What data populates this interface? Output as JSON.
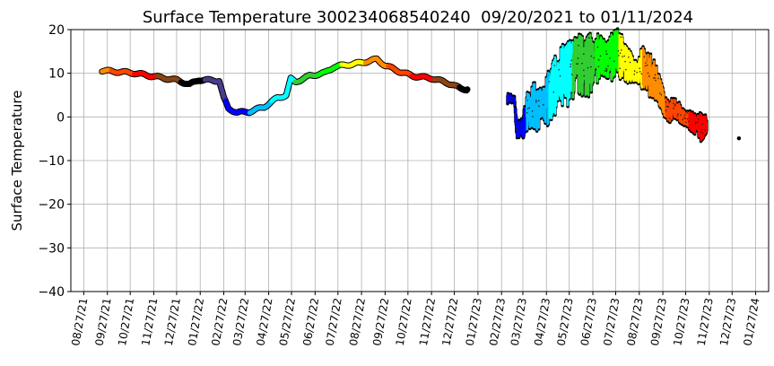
{
  "chart_data": {
    "type": "scatter",
    "title": "Surface Temperature 300234068540240  09/20/2021 to 01/11/2024",
    "xlabel": "",
    "ylabel": "Surface Temperature",
    "ylim": [
      -40,
      20
    ],
    "xlim": [
      "2021-08-10",
      "2024-02-13"
    ],
    "grid": true,
    "yticks": [
      20,
      10,
      0,
      -10,
      -20,
      -30,
      -40
    ],
    "ytick_labels": [
      "20",
      "10",
      "0",
      "−10",
      "−20",
      "−30",
      "−40"
    ],
    "xticks": [
      "2021-08-27",
      "2021-09-27",
      "2021-10-27",
      "2021-11-27",
      "2021-12-27",
      "2022-01-27",
      "2022-02-27",
      "2022-03-27",
      "2022-04-27",
      "2022-05-27",
      "2022-06-27",
      "2022-07-27",
      "2022-08-27",
      "2022-09-27",
      "2022-10-27",
      "2022-11-27",
      "2022-12-27",
      "2023-01-27",
      "2023-02-27",
      "2023-03-27",
      "2023-04-27",
      "2023-05-27",
      "2023-06-27",
      "2023-07-27",
      "2023-08-27",
      "2023-09-27",
      "2023-10-27",
      "2023-11-27",
      "2023-12-27",
      "2024-01-27"
    ],
    "xtick_labels": [
      "08/27/21",
      "09/27/21",
      "10/27/21",
      "11/27/21",
      "12/27/21",
      "01/27/22",
      "02/27/22",
      "03/27/22",
      "04/27/22",
      "05/27/22",
      "06/27/22",
      "07/27/22",
      "08/27/22",
      "09/27/22",
      "10/27/22",
      "11/27/22",
      "12/27/22",
      "01/27/23",
      "02/27/23",
      "03/27/23",
      "04/27/23",
      "05/27/23",
      "06/27/23",
      "07/27/23",
      "08/27/23",
      "09/27/23",
      "10/27/23",
      "11/27/23",
      "12/27/23",
      "01/27/24"
    ],
    "month_colors": [
      "#000000",
      "#483d8b",
      "#0000ff",
      "#00bfff",
      "#00ffff",
      "#32cd32",
      "#00ff00",
      "#ffff00",
      "#ff8c00",
      "#ff4500",
      "#ff0000",
      "#8b4513"
    ],
    "series_line": [
      [
        "2021-09-20",
        10.6
      ],
      [
        "2021-10-30",
        10.1
      ],
      [
        "2021-11-23",
        9.4
      ],
      [
        "2021-12-28",
        8.4
      ],
      [
        "2022-01-13",
        7.4
      ],
      [
        "2022-01-25",
        8.5
      ],
      [
        "2022-02-21",
        8.3
      ],
      [
        "2022-02-27",
        4.3
      ],
      [
        "2022-03-05",
        1.9
      ],
      [
        "2022-03-17",
        1.0
      ],
      [
        "2022-04-02",
        1.2
      ],
      [
        "2022-04-21",
        2.3
      ],
      [
        "2022-05-08",
        4.3
      ],
      [
        "2022-05-20",
        5.0
      ],
      [
        "2022-05-26",
        8.7
      ],
      [
        "2022-06-01",
        8.0
      ],
      [
        "2022-06-20",
        9.4
      ],
      [
        "2022-07-10",
        10.1
      ],
      [
        "2022-07-22",
        11.5
      ],
      [
        "2022-08-03",
        11.8
      ],
      [
        "2022-08-26",
        12.4
      ],
      [
        "2022-09-16",
        13.2
      ],
      [
        "2022-09-27",
        11.8
      ],
      [
        "2022-10-16",
        10.4
      ],
      [
        "2022-11-02",
        9.4
      ],
      [
        "2022-11-29",
        8.8
      ],
      [
        "2022-12-23",
        7.5
      ],
      [
        "2023-01-04",
        6.5
      ],
      [
        "2023-01-13",
        6.3
      ]
    ],
    "series_band": [
      [
        "2023-03-07",
        3.3,
        5.3
      ],
      [
        "2023-03-16",
        3.5,
        4.5
      ],
      [
        "2023-03-19",
        -5.3,
        -1
      ],
      [
        "2023-03-27",
        -5,
        0
      ],
      [
        "2023-04-01",
        -3,
        5
      ],
      [
        "2023-04-08",
        -2,
        7.5
      ],
      [
        "2023-04-15",
        -4.6,
        8
      ],
      [
        "2023-04-22",
        -1,
        6
      ],
      [
        "2023-04-29",
        -2,
        10
      ],
      [
        "2023-05-06",
        0,
        13
      ],
      [
        "2023-05-13",
        2,
        15
      ],
      [
        "2023-05-20",
        1,
        17.6
      ],
      [
        "2023-05-26",
        3,
        17
      ],
      [
        "2023-06-02",
        4.3,
        18
      ],
      [
        "2023-06-09",
        5,
        19
      ],
      [
        "2023-06-16",
        4.5,
        18
      ],
      [
        "2023-06-23",
        5,
        19
      ],
      [
        "2023-06-30",
        7.7,
        18
      ],
      [
        "2023-07-07",
        8,
        19.7
      ],
      [
        "2023-07-14",
        9,
        17
      ],
      [
        "2023-07-21",
        8,
        19
      ],
      [
        "2023-07-28",
        7.7,
        20
      ],
      [
        "2023-08-04",
        9,
        20
      ],
      [
        "2023-08-11",
        8,
        16
      ],
      [
        "2023-08-18",
        7.7,
        14
      ],
      [
        "2023-08-25",
        8,
        12
      ],
      [
        "2023-09-01",
        6,
        17
      ],
      [
        "2023-09-08",
        5,
        15
      ],
      [
        "2023-09-15",
        4.3,
        13
      ],
      [
        "2023-09-22",
        3,
        10
      ],
      [
        "2023-09-29",
        0,
        5
      ],
      [
        "2023-10-06",
        -1,
        4
      ],
      [
        "2023-10-13",
        0,
        4
      ],
      [
        "2023-10-19",
        -1,
        3
      ],
      [
        "2023-10-26",
        -2,
        1
      ],
      [
        "2023-11-02",
        -3,
        1.2
      ],
      [
        "2023-11-09",
        -4,
        0.5
      ],
      [
        "2023-11-16",
        -5.3,
        1
      ],
      [
        "2023-11-24",
        -4,
        0
      ]
    ],
    "isolated_points": [
      [
        "2024-01-05",
        -4.9
      ]
    ]
  }
}
